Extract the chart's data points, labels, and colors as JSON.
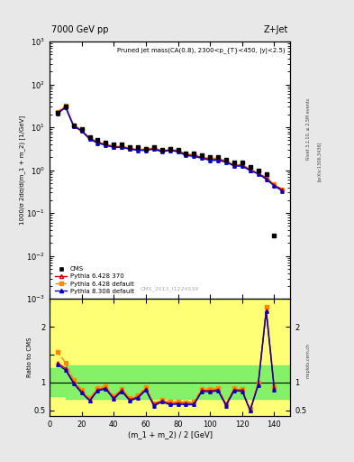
{
  "title_left": "7000 GeV pp",
  "title_right": "Z+Jet",
  "annotation": "Pruned jet mass(CA(0.8), 2300<p_{T}<450, |y|<2.5)",
  "watermark": "CMS_2013_I1224539",
  "rivet_label": "Rivet 3.1.10, ≥ 2.5M events",
  "arxiv_label": "[arXiv:1306.3436]",
  "mcplots_label": "mcplots.cern.ch",
  "xlabel": "(m_1 + m_2) / 2 [GeV]",
  "ylabel_main": "1000/σ 2dσ/d(m_1 + m_2) [1/GeV]",
  "ylabel_ratio": "Ratio to CMS",
  "xlim": [
    0,
    150
  ],
  "ylim_main": [
    0.001,
    1000.0
  ],
  "ylim_ratio": [
    0.4,
    2.5
  ],
  "x_data": [
    5,
    10,
    15,
    20,
    25,
    30,
    35,
    40,
    45,
    50,
    55,
    60,
    65,
    70,
    75,
    80,
    85,
    90,
    95,
    100,
    105,
    110,
    115,
    120,
    125,
    130,
    135,
    140,
    145
  ],
  "cms_y": [
    22,
    30,
    11,
    9,
    6,
    5,
    4.5,
    4,
    4,
    3.5,
    3.5,
    3.2,
    3.5,
    3.0,
    3.2,
    3.0,
    2.5,
    2.5,
    2.2,
    2.0,
    2.0,
    1.8,
    1.5,
    1.5,
    1.2,
    1.0,
    0.8,
    0.03,
    null
  ],
  "py6_370_y": [
    22,
    30,
    11,
    8.5,
    5.5,
    4.5,
    4.0,
    3.5,
    3.5,
    3.2,
    3.0,
    3.0,
    3.2,
    2.8,
    3.0,
    2.8,
    2.3,
    2.2,
    2.0,
    1.8,
    1.8,
    1.6,
    1.3,
    1.3,
    1.0,
    0.85,
    0.65,
    0.45,
    0.35
  ],
  "py6_def_y": [
    23,
    32,
    11,
    8.8,
    5.6,
    4.6,
    4.1,
    3.6,
    3.6,
    3.3,
    3.1,
    3.1,
    3.3,
    2.9,
    3.1,
    2.9,
    2.4,
    2.3,
    2.1,
    1.9,
    1.9,
    1.65,
    1.35,
    1.35,
    1.05,
    0.88,
    0.67,
    0.47,
    0.36
  ],
  "py8_def_y": [
    21,
    29,
    10.5,
    8.2,
    5.3,
    4.3,
    3.8,
    3.4,
    3.4,
    3.1,
    2.9,
    2.9,
    3.1,
    2.7,
    2.9,
    2.7,
    2.2,
    2.1,
    1.9,
    1.7,
    1.7,
    1.55,
    1.25,
    1.25,
    0.98,
    0.82,
    0.62,
    0.43,
    0.33
  ],
  "ratio_x": [
    5,
    10,
    15,
    20,
    25,
    30,
    35,
    40,
    45,
    50,
    55,
    60,
    65,
    70,
    75,
    80,
    85,
    90,
    95,
    100,
    105,
    110,
    115,
    120,
    125,
    130,
    135,
    140
  ],
  "ratio_py6_370": [
    1.35,
    1.25,
    1.0,
    0.83,
    0.68,
    0.87,
    0.9,
    0.72,
    0.86,
    0.69,
    0.74,
    0.88,
    0.6,
    0.67,
    0.62,
    0.63,
    0.62,
    0.62,
    0.86,
    0.85,
    0.87,
    0.6,
    0.87,
    0.86,
    0.5,
    0.97,
    2.3,
    0.9
  ],
  "ratio_py6_def": [
    1.55,
    1.35,
    1.05,
    0.87,
    0.72,
    0.9,
    0.93,
    0.75,
    0.89,
    0.72,
    0.77,
    0.91,
    0.62,
    0.69,
    0.65,
    0.66,
    0.64,
    0.65,
    0.89,
    0.88,
    0.9,
    0.62,
    0.9,
    0.89,
    0.52,
    1.0,
    2.35,
    0.93
  ],
  "ratio_py8_def": [
    1.32,
    1.22,
    0.98,
    0.81,
    0.67,
    0.85,
    0.88,
    0.7,
    0.84,
    0.67,
    0.72,
    0.86,
    0.58,
    0.65,
    0.6,
    0.61,
    0.6,
    0.6,
    0.84,
    0.83,
    0.85,
    0.58,
    0.85,
    0.84,
    0.49,
    0.95,
    2.27,
    0.87
  ],
  "yellow_band_x": [
    0,
    10,
    20,
    40,
    80,
    130,
    150
  ],
  "yellow_band_lo": [
    0.4,
    0.4,
    0.4,
    0.4,
    0.4,
    0.4,
    0.4
  ],
  "yellow_band_hi": [
    2.5,
    2.5,
    2.5,
    2.5,
    2.5,
    2.5,
    2.5
  ],
  "green_band_x": [
    0,
    10,
    20,
    40,
    80,
    130,
    150
  ],
  "green_band_lo": [
    0.8,
    0.8,
    0.8,
    0.7,
    0.7,
    0.7,
    0.7
  ],
  "green_band_hi": [
    1.2,
    1.2,
    1.2,
    1.3,
    1.3,
    1.3,
    1.3
  ],
  "bg_color": "#e8e8e8",
  "plot_bg": "#ffffff",
  "color_cms": "#000000",
  "color_py6_370": "#cc0000",
  "color_py6_def": "#ff8800",
  "color_py8_def": "#0000cc"
}
